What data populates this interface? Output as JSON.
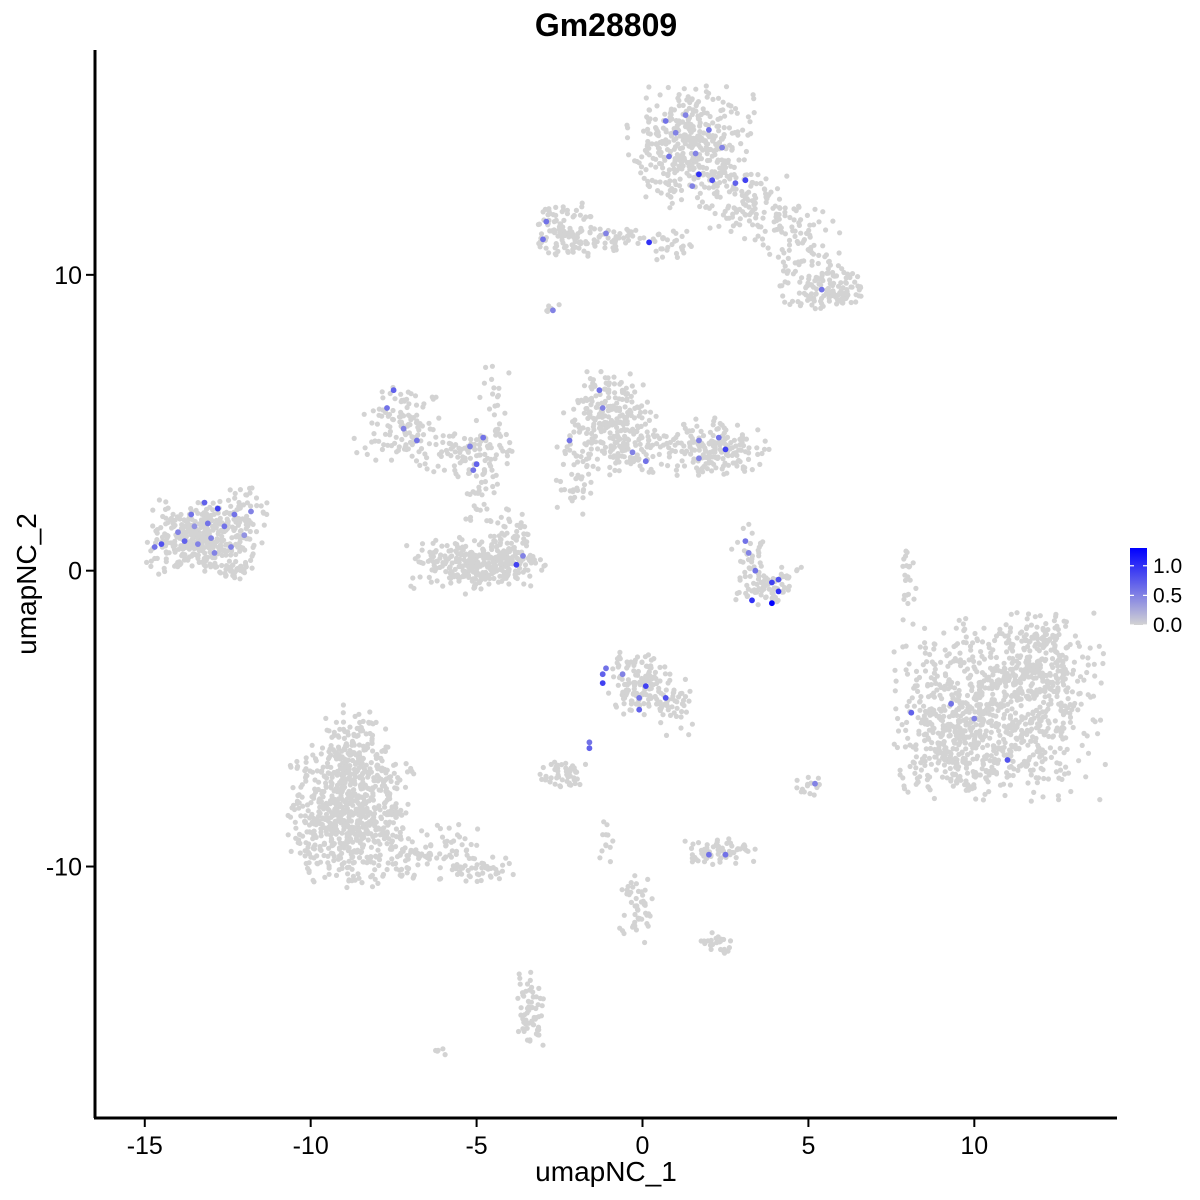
{
  "chart_data": {
    "type": "scatter",
    "title": "Gm28809",
    "xlabel": "umapNC_1",
    "ylabel": "umapNC_2",
    "xlim": [
      -16.5,
      14.3
    ],
    "ylim": [
      -18.5,
      17.6
    ],
    "x_ticks": [
      -15,
      -10,
      -5,
      0,
      5,
      10
    ],
    "x_tick_labels": [
      "-15",
      "-10",
      "-5",
      "0",
      "5",
      "10"
    ],
    "y_ticks": [
      -10,
      0,
      10
    ],
    "y_tick_labels": [
      "-10",
      "0",
      "10"
    ],
    "grid": false,
    "legend_position": "right",
    "color_scale": {
      "low_color": "#d3d3d3",
      "high_color": "#0000ff",
      "min": 0.0,
      "max": 1.3,
      "ticks": [
        0.0,
        0.5,
        1.0
      ],
      "tick_labels": [
        "0.0",
        "0.5",
        "1.0"
      ]
    },
    "background_clusters": [
      {
        "cx": 1.5,
        "cy": 14.4,
        "sx": 0.9,
        "sy": 1.0,
        "n": 420
      },
      {
        "cx": 3.3,
        "cy": 12.3,
        "sx": 0.8,
        "sy": 0.6,
        "n": 120
      },
      {
        "cx": 4.9,
        "cy": 10.6,
        "sx": 0.6,
        "sy": 0.8,
        "n": 110
      },
      {
        "cx": 5.8,
        "cy": 9.5,
        "sx": 0.45,
        "sy": 0.35,
        "n": 90
      },
      {
        "cx": -2.3,
        "cy": 11.5,
        "sx": 0.55,
        "sy": 0.45,
        "n": 110
      },
      {
        "cx": -0.8,
        "cy": 11.2,
        "sx": 0.9,
        "sy": 0.2,
        "n": 50
      },
      {
        "cx": 1.0,
        "cy": 11.0,
        "sx": 0.3,
        "sy": 0.3,
        "n": 25
      },
      {
        "cx": -2.7,
        "cy": 8.8,
        "sx": 0.1,
        "sy": 0.1,
        "n": 6
      },
      {
        "cx": -13.3,
        "cy": 1.1,
        "sx": 0.75,
        "sy": 0.6,
        "n": 380
      },
      {
        "cx": -12.0,
        "cy": 1.8,
        "sx": 0.35,
        "sy": 0.5,
        "n": 50
      },
      {
        "cx": -12.3,
        "cy": 0.0,
        "sx": 0.3,
        "sy": 0.15,
        "n": 30
      },
      {
        "cx": -7.2,
        "cy": 5.0,
        "sx": 0.6,
        "sy": 0.6,
        "n": 110
      },
      {
        "cx": -5.4,
        "cy": 3.9,
        "sx": 0.8,
        "sy": 0.35,
        "n": 90
      },
      {
        "cx": -4.5,
        "cy": 5.0,
        "sx": 0.25,
        "sy": 1.2,
        "n": 40
      },
      {
        "cx": -5.0,
        "cy": 0.2,
        "sx": 1.0,
        "sy": 0.45,
        "n": 300
      },
      {
        "cx": -4.0,
        "cy": 1.0,
        "sx": 0.35,
        "sy": 0.5,
        "n": 60
      },
      {
        "cx": -4.9,
        "cy": 2.4,
        "sx": 0.2,
        "sy": 0.5,
        "n": 25
      },
      {
        "cx": -1.0,
        "cy": 5.0,
        "sx": 0.7,
        "sy": 0.8,
        "n": 260
      },
      {
        "cx": 1.2,
        "cy": 4.1,
        "sx": 1.2,
        "sy": 0.4,
        "n": 150
      },
      {
        "cx": 2.4,
        "cy": 4.2,
        "sx": 0.45,
        "sy": 0.5,
        "n": 90
      },
      {
        "cx": -2.0,
        "cy": 3.0,
        "sx": 0.3,
        "sy": 0.6,
        "n": 35
      },
      {
        "cx": 3.8,
        "cy": -0.5,
        "sx": 0.45,
        "sy": 0.3,
        "n": 80
      },
      {
        "cx": 3.2,
        "cy": 0.5,
        "sx": 0.25,
        "sy": 0.5,
        "n": 30
      },
      {
        "cx": 10.7,
        "cy": -4.6,
        "sx": 1.45,
        "sy": 1.45,
        "n": 900
      },
      {
        "cx": 9.3,
        "cy": -6.0,
        "sx": 0.8,
        "sy": 0.7,
        "n": 150
      },
      {
        "cx": 12.1,
        "cy": -2.9,
        "sx": 0.5,
        "sy": 0.7,
        "n": 120
      },
      {
        "cx": 8.0,
        "cy": 0.0,
        "sx": 0.15,
        "sy": 0.6,
        "n": 20
      },
      {
        "cx": -0.1,
        "cy": -3.8,
        "sx": 0.45,
        "sy": 0.5,
        "n": 130
      },
      {
        "cx": 0.9,
        "cy": -4.5,
        "sx": 0.35,
        "sy": 0.5,
        "n": 45
      },
      {
        "cx": -8.8,
        "cy": -8.3,
        "sx": 0.9,
        "sy": 1.1,
        "n": 700
      },
      {
        "cx": -8.6,
        "cy": -6.2,
        "sx": 0.5,
        "sy": 0.8,
        "n": 150
      },
      {
        "cx": -6.3,
        "cy": -9.5,
        "sx": 0.7,
        "sy": 0.5,
        "n": 80
      },
      {
        "cx": -4.7,
        "cy": -10.1,
        "sx": 0.5,
        "sy": 0.2,
        "n": 40
      },
      {
        "cx": 2.3,
        "cy": -9.5,
        "sx": 0.5,
        "sy": 0.2,
        "n": 70
      },
      {
        "cx": -2.4,
        "cy": -6.9,
        "sx": 0.35,
        "sy": 0.25,
        "n": 50
      },
      {
        "cx": 5.0,
        "cy": -7.3,
        "sx": 0.2,
        "sy": 0.2,
        "n": 15
      },
      {
        "cx": -0.2,
        "cy": -11.5,
        "sx": 0.25,
        "sy": 0.6,
        "n": 50
      },
      {
        "cx": 2.3,
        "cy": -12.6,
        "sx": 0.25,
        "sy": 0.2,
        "n": 25
      },
      {
        "cx": -3.4,
        "cy": -14.8,
        "sx": 0.2,
        "sy": 0.6,
        "n": 60
      },
      {
        "cx": -1.1,
        "cy": -9.0,
        "sx": 0.1,
        "sy": 0.4,
        "n": 12
      },
      {
        "cx": -6.0,
        "cy": -16.2,
        "sx": 0.15,
        "sy": 0.1,
        "n": 6
      }
    ],
    "expressing_cells": [
      {
        "x": -14.7,
        "y": 0.8,
        "v": 0.6
      },
      {
        "x": -14.5,
        "y": 0.9,
        "v": 0.8
      },
      {
        "x": -14.0,
        "y": 1.3,
        "v": 0.5
      },
      {
        "x": -13.8,
        "y": 1.0,
        "v": 0.7
      },
      {
        "x": -13.6,
        "y": 1.9,
        "v": 0.6
      },
      {
        "x": -13.4,
        "y": 0.9,
        "v": 0.5
      },
      {
        "x": -13.2,
        "y": 2.3,
        "v": 0.7
      },
      {
        "x": -13.1,
        "y": 1.6,
        "v": 0.6
      },
      {
        "x": -13.0,
        "y": 1.1,
        "v": 0.5
      },
      {
        "x": -12.8,
        "y": 2.1,
        "v": 0.9
      },
      {
        "x": -12.6,
        "y": 1.5,
        "v": 0.6
      },
      {
        "x": -12.4,
        "y": 0.8,
        "v": 0.5
      },
      {
        "x": -12.3,
        "y": 1.9,
        "v": 0.6
      },
      {
        "x": -12.0,
        "y": 1.2,
        "v": 0.4
      },
      {
        "x": -11.8,
        "y": 2.0,
        "v": 0.5
      },
      {
        "x": -13.5,
        "y": 1.5,
        "v": 0.4
      },
      {
        "x": -12.9,
        "y": 0.6,
        "v": 0.5
      },
      {
        "x": -7.7,
        "y": 5.5,
        "v": 0.6
      },
      {
        "x": -7.5,
        "y": 6.1,
        "v": 0.7
      },
      {
        "x": -7.2,
        "y": 4.8,
        "v": 0.5
      },
      {
        "x": -6.8,
        "y": 4.4,
        "v": 0.6
      },
      {
        "x": -5.2,
        "y": 4.2,
        "v": 0.5
      },
      {
        "x": -5.0,
        "y": 3.6,
        "v": 0.7
      },
      {
        "x": -4.8,
        "y": 4.5,
        "v": 0.6
      },
      {
        "x": -5.1,
        "y": 3.4,
        "v": 0.6
      },
      {
        "x": -3.8,
        "y": 0.2,
        "v": 0.9
      },
      {
        "x": -3.6,
        "y": 0.5,
        "v": 0.5
      },
      {
        "x": -2.9,
        "y": 11.8,
        "v": 0.6
      },
      {
        "x": -3.0,
        "y": 11.2,
        "v": 0.6
      },
      {
        "x": -1.1,
        "y": 11.4,
        "v": 0.5
      },
      {
        "x": 0.2,
        "y": 11.1,
        "v": 1.0
      },
      {
        "x": -2.7,
        "y": 8.8,
        "v": 0.5
      },
      {
        "x": 0.7,
        "y": 15.2,
        "v": 0.6
      },
      {
        "x": 1.3,
        "y": 15.4,
        "v": 0.5
      },
      {
        "x": 1.0,
        "y": 14.8,
        "v": 0.5
      },
      {
        "x": 0.8,
        "y": 14.0,
        "v": 0.6
      },
      {
        "x": 1.6,
        "y": 14.1,
        "v": 0.5
      },
      {
        "x": 2.0,
        "y": 14.9,
        "v": 0.6
      },
      {
        "x": 2.4,
        "y": 14.3,
        "v": 0.5
      },
      {
        "x": 1.7,
        "y": 13.4,
        "v": 1.0
      },
      {
        "x": 2.1,
        "y": 13.2,
        "v": 0.8
      },
      {
        "x": 2.8,
        "y": 13.1,
        "v": 0.7
      },
      {
        "x": 3.1,
        "y": 13.2,
        "v": 0.9
      },
      {
        "x": 1.5,
        "y": 13.0,
        "v": 0.5
      },
      {
        "x": 5.4,
        "y": 9.5,
        "v": 0.6
      },
      {
        "x": -1.3,
        "y": 6.1,
        "v": 0.6
      },
      {
        "x": -1.2,
        "y": 5.5,
        "v": 0.5
      },
      {
        "x": -2.2,
        "y": 4.4,
        "v": 0.6
      },
      {
        "x": -0.3,
        "y": 4.0,
        "v": 0.5
      },
      {
        "x": 0.1,
        "y": 3.7,
        "v": 0.6
      },
      {
        "x": 1.7,
        "y": 4.4,
        "v": 0.5
      },
      {
        "x": 2.3,
        "y": 4.5,
        "v": 0.6
      },
      {
        "x": 2.5,
        "y": 4.1,
        "v": 0.9
      },
      {
        "x": 1.7,
        "y": 3.8,
        "v": 0.5
      },
      {
        "x": 3.1,
        "y": 1.0,
        "v": 0.6
      },
      {
        "x": 3.2,
        "y": 0.6,
        "v": 0.5
      },
      {
        "x": 3.4,
        "y": 0.0,
        "v": 0.6
      },
      {
        "x": 3.9,
        "y": -0.4,
        "v": 0.9
      },
      {
        "x": 4.1,
        "y": -0.3,
        "v": 0.8
      },
      {
        "x": 4.1,
        "y": -0.7,
        "v": 1.0
      },
      {
        "x": 3.3,
        "y": -1.0,
        "v": 1.0
      },
      {
        "x": 3.9,
        "y": -1.1,
        "v": 1.3
      },
      {
        "x": -1.2,
        "y": -3.5,
        "v": 0.7
      },
      {
        "x": -1.2,
        "y": -3.8,
        "v": 0.9
      },
      {
        "x": -1.1,
        "y": -3.3,
        "v": 0.6
      },
      {
        "x": -0.6,
        "y": -3.5,
        "v": 0.5
      },
      {
        "x": -0.1,
        "y": -4.3,
        "v": 0.6
      },
      {
        "x": 0.1,
        "y": -3.9,
        "v": 0.9
      },
      {
        "x": 0.7,
        "y": -4.3,
        "v": 0.8
      },
      {
        "x": -0.1,
        "y": -4.7,
        "v": 0.7
      },
      {
        "x": -1.6,
        "y": -5.8,
        "v": 0.6
      },
      {
        "x": -1.6,
        "y": -6.0,
        "v": 0.7
      },
      {
        "x": 2.0,
        "y": -9.6,
        "v": 0.6
      },
      {
        "x": 2.5,
        "y": -9.6,
        "v": 0.6
      },
      {
        "x": 5.2,
        "y": -7.2,
        "v": 0.5
      },
      {
        "x": 8.1,
        "y": -4.8,
        "v": 0.7
      },
      {
        "x": 9.3,
        "y": -4.5,
        "v": 0.6
      },
      {
        "x": 10.0,
        "y": -5.0,
        "v": 0.5
      },
      {
        "x": 11.0,
        "y": -6.4,
        "v": 0.8
      }
    ]
  }
}
